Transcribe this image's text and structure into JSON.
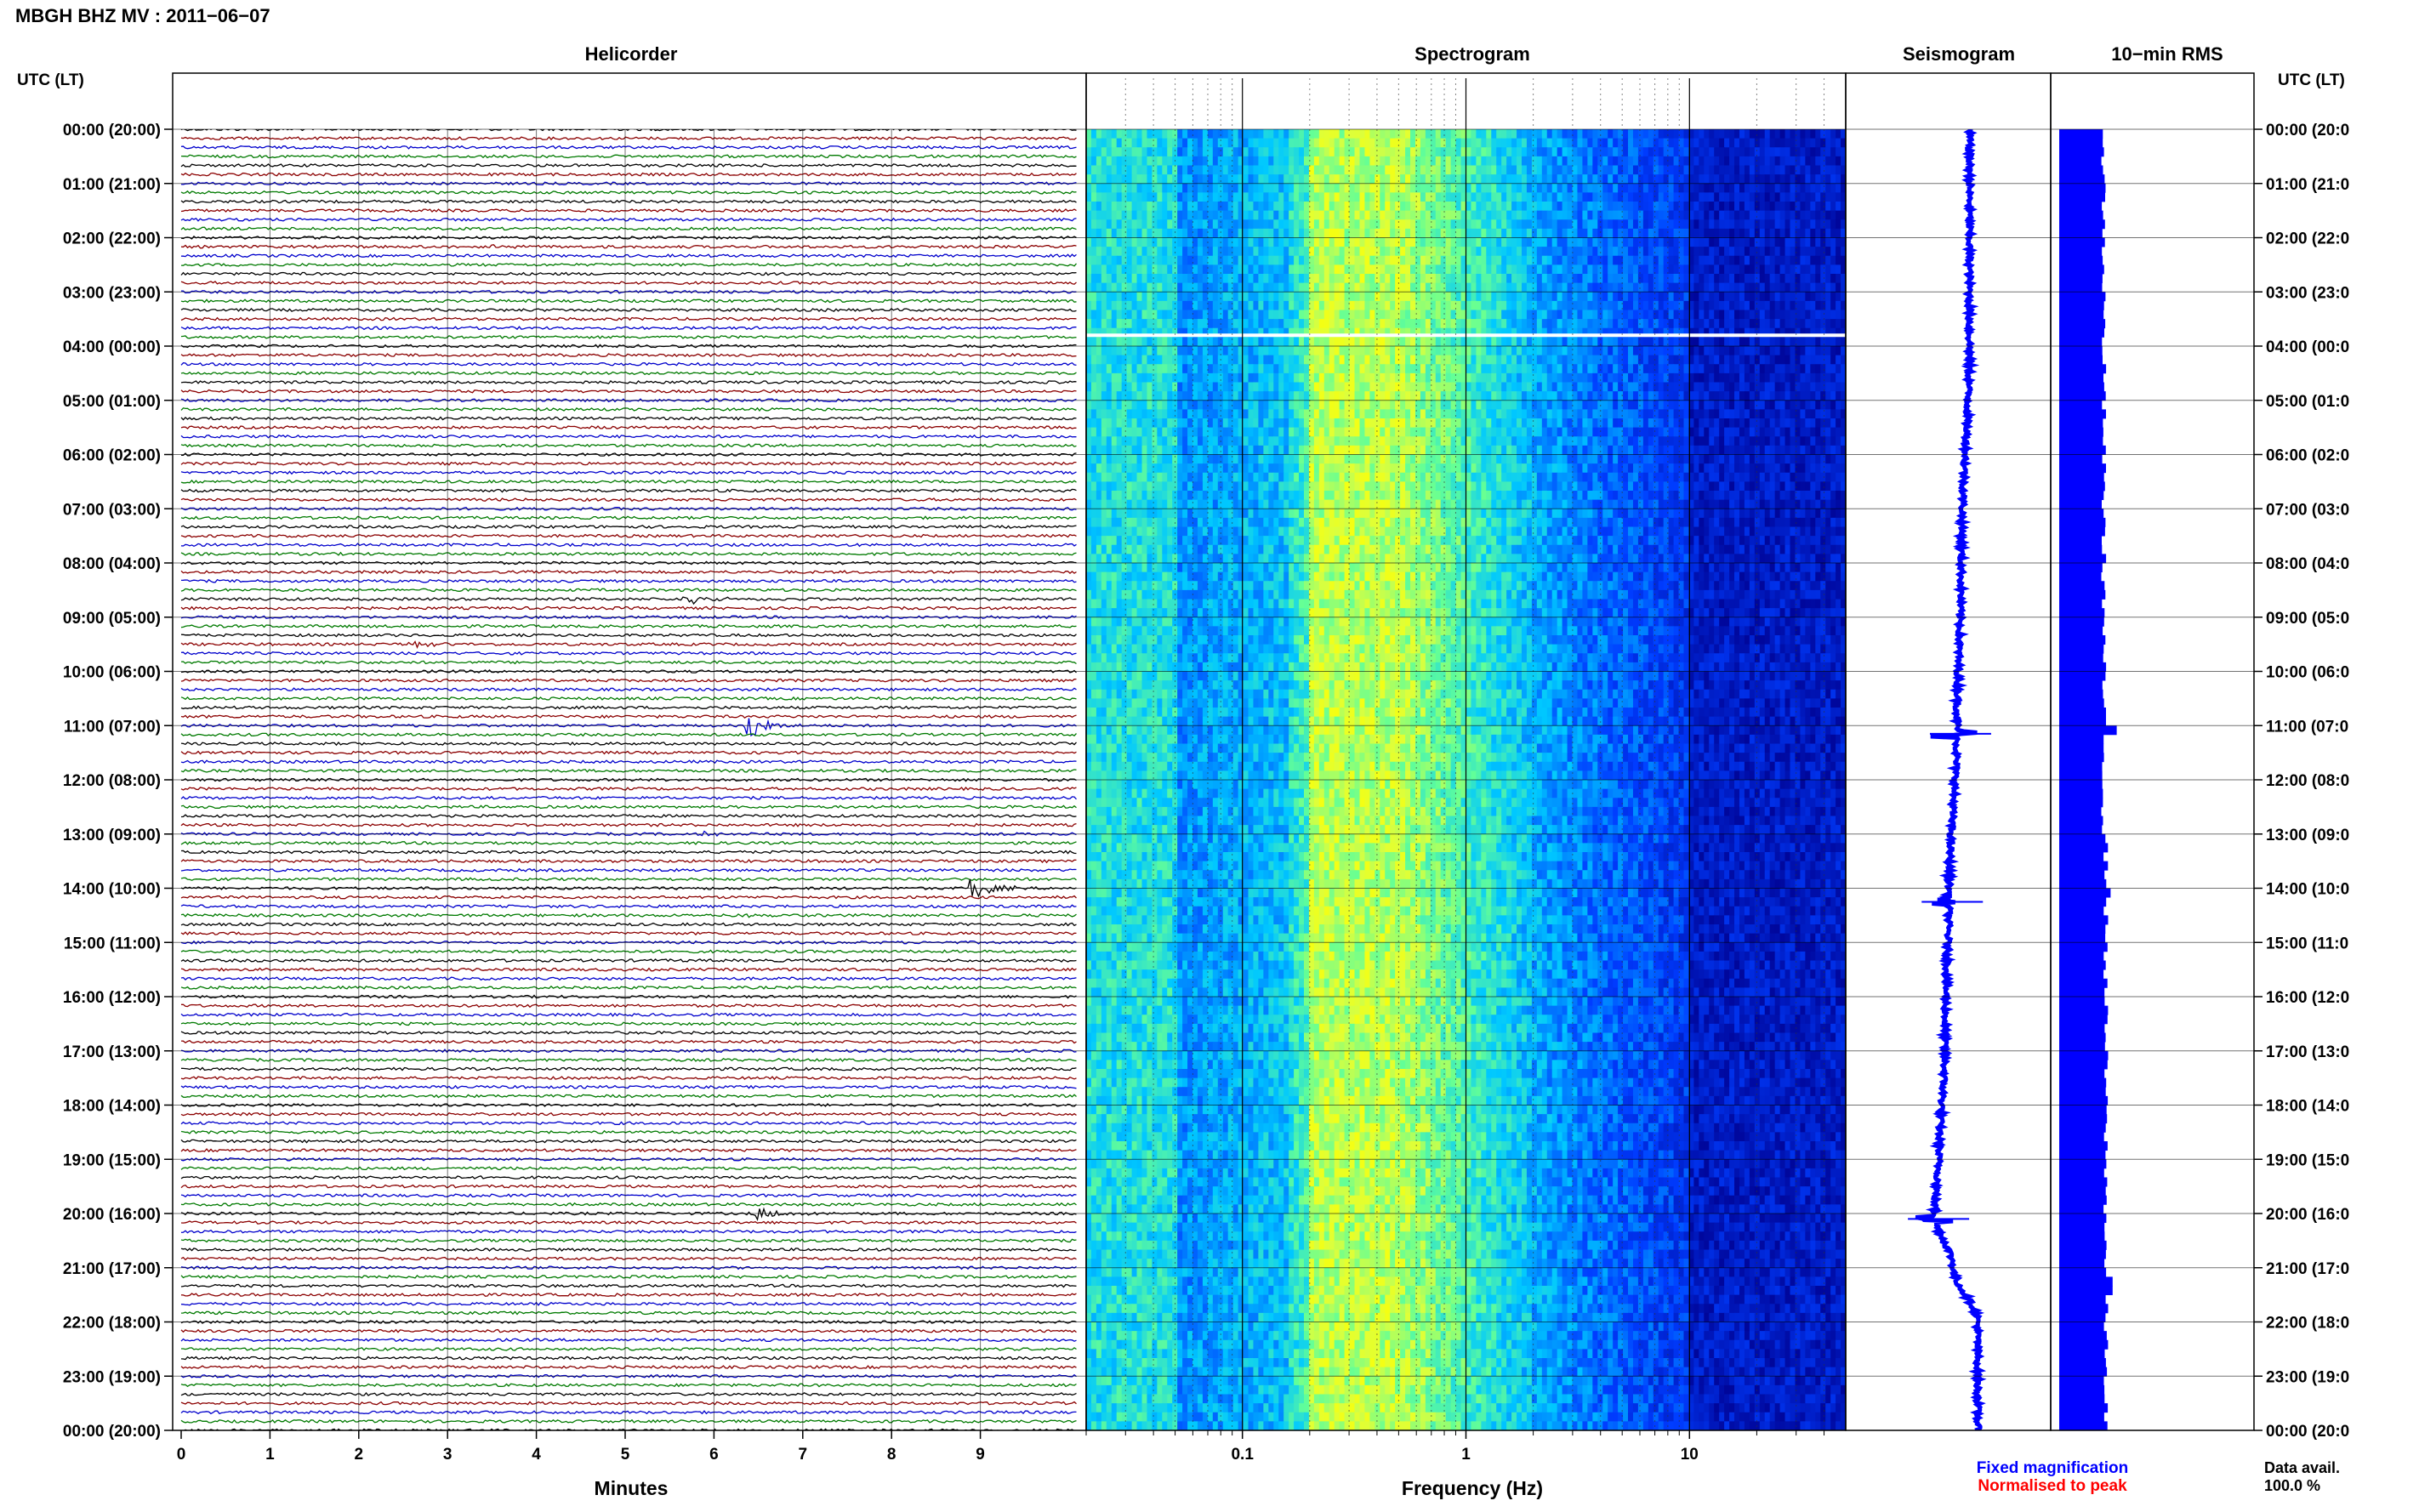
{
  "header": {
    "title": "MBGH BHZ MV : 2011−06−07"
  },
  "panels": {
    "helicorder": "Helicorder",
    "spectrogram": "Spectrogram",
    "seismogram": "Seismogram",
    "rms": "10−min RMS"
  },
  "axes": {
    "left_header": "UTC (LT)",
    "right_header": "UTC (LT)",
    "minutes_label": "Minutes",
    "frequency_label": "Frequency (Hz)"
  },
  "legend": {
    "fixed": "Fixed magnification",
    "normalised": "Normalised to peak"
  },
  "data_avail": {
    "label": "Data avail.",
    "value": "100.0 %"
  },
  "colors": {
    "trace_cycle": [
      "#000000",
      "#8b0000",
      "#0000cc",
      "#007a00"
    ],
    "spectrogram_low": "#00008f",
    "spectrogram_high": "#ffff00",
    "seismogram": "#0000ff",
    "rms": "#0000ff",
    "legend_fixed": "#0000ff",
    "legend_normalised": "#ff0000"
  },
  "chart_data": [
    {
      "type": "line",
      "name": "Helicorder",
      "x_label": "Minutes",
      "x_ticks": [
        "0",
        "1",
        "2",
        "3",
        "4",
        "5",
        "6",
        "7",
        "8",
        "9"
      ],
      "xlim": [
        0,
        10
      ],
      "rows_per_hour": 6,
      "hours_left": [
        "00:00 (20:00)",
        "01:00 (21:00)",
        "02:00 (22:00)",
        "03:00 (23:00)",
        "04:00 (00:00)",
        "05:00 (01:00)",
        "06:00 (02:00)",
        "07:00 (03:00)",
        "08:00 (04:00)",
        "09:00 (05:00)",
        "10:00 (06:00)",
        "11:00 (07:00)",
        "12:00 (08:00)",
        "13:00 (09:00)",
        "14:00 (10:00)",
        "15:00 (11:00)",
        "16:00 (12:00)",
        "17:00 (13:00)",
        "18:00 (14:00)",
        "19:00 (15:00)",
        "20:00 (16:00)",
        "21:00 (17:00)",
        "22:00 (18:00)",
        "23:00 (19:00)",
        "00:00 (20:00)"
      ],
      "hours_right": [
        "00:00 (20:0",
        "01:00 (21:0",
        "02:00 (22:0",
        "03:00 (23:0",
        "04:00 (00:0",
        "05:00 (01:0",
        "06:00 (02:0",
        "07:00 (03:0",
        "08:00 (04:0",
        "09:00 (05:0",
        "10:00 (06:0",
        "11:00 (07:0",
        "12:00 (08:0",
        "13:00 (09:0",
        "14:00 (10:0",
        "15:00 (11:0",
        "16:00 (12:0",
        "17:00 (13:0",
        "18:00 (14:0",
        "19:00 (15:0",
        "20:00 (16:0",
        "21:00 (17:0",
        "22:00 (18:0",
        "23:00 (19:0",
        "00:00 (20:0"
      ],
      "events": [
        {
          "hour": 2,
          "row": 1,
          "minute": 3.5,
          "amp": 0.4
        },
        {
          "hour": 8,
          "row": 4,
          "minute": 5.7,
          "amp": 1.0
        },
        {
          "hour": 9,
          "row": 3,
          "minute": 2.6,
          "amp": 0.5
        },
        {
          "hour": 11,
          "row": 0,
          "minute": 6.4,
          "amp": 3.0
        },
        {
          "hour": 13,
          "row": 0,
          "minute": 5.9,
          "amp": 0.6
        },
        {
          "hour": 14,
          "row": 0,
          "minute": 8.9,
          "amp": 2.2
        },
        {
          "hour": 14,
          "row": 3,
          "minute": 6.2,
          "amp": 0.5
        },
        {
          "hour": 20,
          "row": 0,
          "minute": 6.5,
          "amp": 1.1
        }
      ]
    },
    {
      "type": "heatmap",
      "name": "Spectrogram",
      "x_label": "Frequency (Hz)",
      "x_scale": "log",
      "xlim": [
        0.02,
        50
      ],
      "x_ticks": [
        0.1,
        1,
        10
      ],
      "x_tick_labels": [
        "0.1",
        "1",
        "10"
      ],
      "peak_band_hz": [
        0.2,
        0.5
      ],
      "data_gap_hour": 3.8
    },
    {
      "type": "line",
      "name": "Seismogram",
      "note_events_hours": [
        11.15,
        14.25,
        20.1
      ],
      "drift_profile": [
        [
          0,
          0.28
        ],
        [
          4,
          0.28
        ],
        [
          8,
          0.24
        ],
        [
          11,
          0.22
        ],
        [
          14,
          0.18
        ],
        [
          17,
          0.16
        ],
        [
          19,
          0.13
        ],
        [
          20,
          0.11
        ],
        [
          21,
          0.2
        ],
        [
          22,
          0.32
        ],
        [
          24,
          0.32
        ]
      ]
    },
    {
      "type": "bar",
      "name": "10-min RMS",
      "orientation": "horizontal",
      "bars_per_hour": 6,
      "base_fraction": 0.62,
      "spikes": [
        {
          "hour": 11.1,
          "value": 0.95
        },
        {
          "hour": 14.1,
          "value": 0.8
        },
        {
          "hour": 21.3,
          "value": 0.85
        }
      ]
    }
  ]
}
